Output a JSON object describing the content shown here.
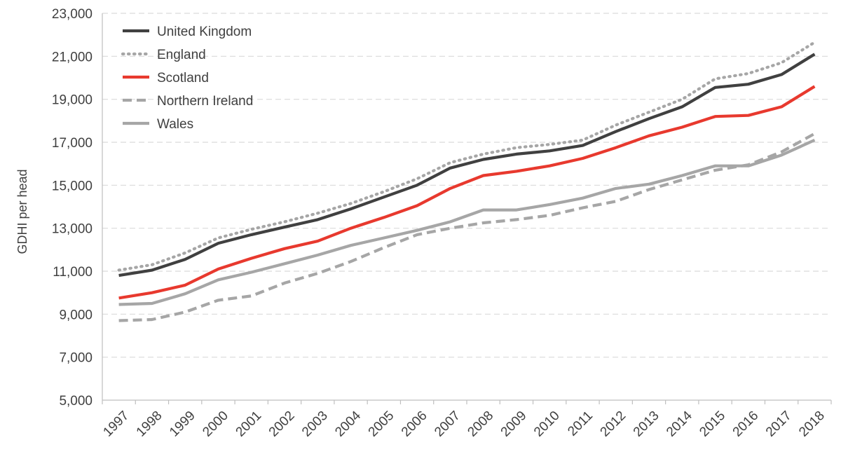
{
  "chart_data": {
    "type": "line",
    "title": "",
    "xlabel": "",
    "ylabel": "GDHI per head",
    "ylim": [
      5000,
      23000
    ],
    "yticks": [
      5000,
      7000,
      9000,
      11000,
      13000,
      15000,
      17000,
      19000,
      21000,
      23000
    ],
    "ytick_labels": [
      "5,000",
      "7,000",
      "9,000",
      "11,000",
      "13,000",
      "15,000",
      "17,000",
      "19,000",
      "21,000",
      "23,000"
    ],
    "grid": "horizontal dashed",
    "legend_position": "top-left",
    "x": [
      "1997",
      "1998",
      "1999",
      "2000",
      "2001",
      "2002",
      "2003",
      "2004",
      "2005",
      "2006",
      "2007",
      "2008",
      "2009",
      "2010",
      "2011",
      "2012",
      "2013",
      "2014",
      "2015",
      "2016",
      "2017",
      "2018"
    ],
    "series": [
      {
        "name": "United Kingdom",
        "color": "#404040",
        "dash": "solid",
        "values": [
          10800,
          11050,
          11550,
          12300,
          12700,
          13050,
          13400,
          13900,
          14450,
          15000,
          15800,
          16200,
          16450,
          16600,
          16850,
          17500,
          18100,
          18650,
          19550,
          19700,
          20150,
          21100
        ]
      },
      {
        "name": "England",
        "color": "#a6a6a6",
        "dash": "dotted",
        "values": [
          11050,
          11300,
          11850,
          12550,
          12950,
          13300,
          13700,
          14150,
          14700,
          15300,
          16050,
          16450,
          16750,
          16900,
          17100,
          17800,
          18400,
          19000,
          19950,
          20200,
          20700,
          21650
        ]
      },
      {
        "name": "Scotland",
        "color": "#e8392e",
        "dash": "solid",
        "values": [
          9750,
          10000,
          10350,
          11100,
          11600,
          12050,
          12400,
          13000,
          13500,
          14050,
          14850,
          15450,
          15650,
          15900,
          16250,
          16750,
          17300,
          17700,
          18200,
          18250,
          18650,
          19600
        ]
      },
      {
        "name": "Northern Ireland",
        "color": "#a6a6a6",
        "dash": "dashed",
        "values": [
          8700,
          8750,
          9100,
          9650,
          9850,
          10450,
          10900,
          11450,
          12100,
          12700,
          13000,
          13250,
          13400,
          13600,
          13950,
          14250,
          14800,
          15250,
          15700,
          15950,
          16550,
          17400
        ]
      },
      {
        "name": "Wales",
        "color": "#a6a6a6",
        "dash": "solid",
        "values": [
          9450,
          9500,
          9950,
          10600,
          10950,
          11350,
          11750,
          12200,
          12550,
          12900,
          13300,
          13850,
          13850,
          14100,
          14400,
          14850,
          15050,
          15450,
          15900,
          15900,
          16400,
          17100
        ]
      }
    ]
  }
}
